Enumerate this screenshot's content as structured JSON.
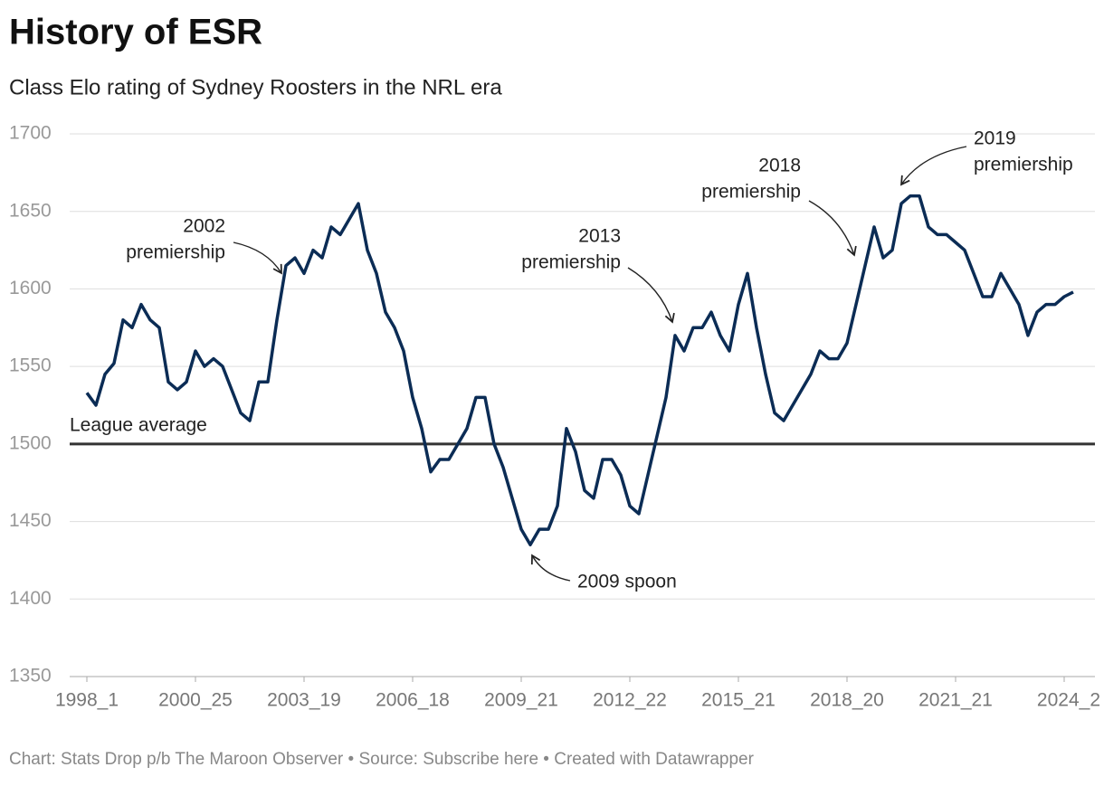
{
  "chart_data": {
    "type": "line",
    "title": "History of ESR",
    "subtitle": "Class Elo rating of Sydney Roosters in the NRL era",
    "footer": "Chart: Stats Drop p/b The Maroon Observer • Source: Subscribe here • Created with Datawrapper",
    "categories": [
      "1998_1",
      null,
      null,
      null,
      null,
      null,
      null,
      null,
      null,
      null,
      null,
      null,
      "2000_25",
      null,
      null,
      null,
      null,
      null,
      null,
      null,
      null,
      null,
      null,
      null,
      "2003_19",
      null,
      null,
      null,
      null,
      null,
      null,
      null,
      null,
      null,
      null,
      null,
      "2006_18",
      null,
      null,
      null,
      null,
      null,
      null,
      null,
      null,
      null,
      null,
      null,
      "2009_21",
      null,
      null,
      null,
      null,
      null,
      null,
      null,
      null,
      null,
      null,
      null,
      "2012_22",
      null,
      null,
      null,
      null,
      null,
      null,
      null,
      null,
      null,
      null,
      null,
      "2015_21",
      null,
      null,
      null,
      null,
      null,
      null,
      null,
      null,
      null,
      null,
      null,
      "2018_20",
      null,
      null,
      null,
      null,
      null,
      null,
      null,
      null,
      null,
      null,
      null,
      "2021_21",
      null,
      null,
      null,
      null,
      null,
      null,
      null,
      null,
      null,
      null,
      null,
      "2024_2",
      null
    ],
    "series": [
      {
        "name": "Sydney Roosters",
        "color": "#0b2c55",
        "values": [
          1533,
          1525,
          1545,
          1552,
          1580,
          1575,
          1590,
          1580,
          1575,
          1540,
          1535,
          1540,
          1560,
          1550,
          1555,
          1550,
          1535,
          1520,
          1515,
          1540,
          1540,
          1580,
          1615,
          1620,
          1610,
          1625,
          1620,
          1640,
          1635,
          1645,
          1655,
          1625,
          1610,
          1585,
          1575,
          1560,
          1530,
          1510,
          1482,
          1490,
          1490,
          1500,
          1510,
          1530,
          1530,
          1500,
          1485,
          1465,
          1445,
          1435,
          1445,
          1445,
          1460,
          1510,
          1495,
          1470,
          1465,
          1490,
          1490,
          1480,
          1460,
          1455,
          1480,
          1505,
          1530,
          1570,
          1560,
          1575,
          1575,
          1585,
          1570,
          1560,
          1590,
          1610,
          1575,
          1545,
          1520,
          1515,
          1525,
          1535,
          1545,
          1560,
          1555,
          1555,
          1565,
          1590,
          1615,
          1640,
          1620,
          1625,
          1655,
          1660,
          1660,
          1640,
          1635,
          1635,
          1630,
          1625,
          1610,
          1595,
          1595,
          1610,
          1600,
          1590,
          1570,
          1585,
          1590,
          1590,
          1595,
          1598
        ]
      }
    ],
    "ylim": [
      1350,
      1700
    ],
    "yticks": [
      1350,
      1400,
      1450,
      1500,
      1550,
      1600,
      1650,
      1700
    ],
    "grid": true,
    "reference_line": {
      "value": 1500,
      "label": "League average"
    },
    "annotations": [
      {
        "lines": [
          "2002",
          "premiership"
        ]
      },
      {
        "lines": [
          "2009 spoon"
        ]
      },
      {
        "lines": [
          "2013",
          "premiership"
        ]
      },
      {
        "lines": [
          "2018",
          "premiership"
        ]
      },
      {
        "lines": [
          "2019",
          "premiership"
        ]
      }
    ]
  }
}
